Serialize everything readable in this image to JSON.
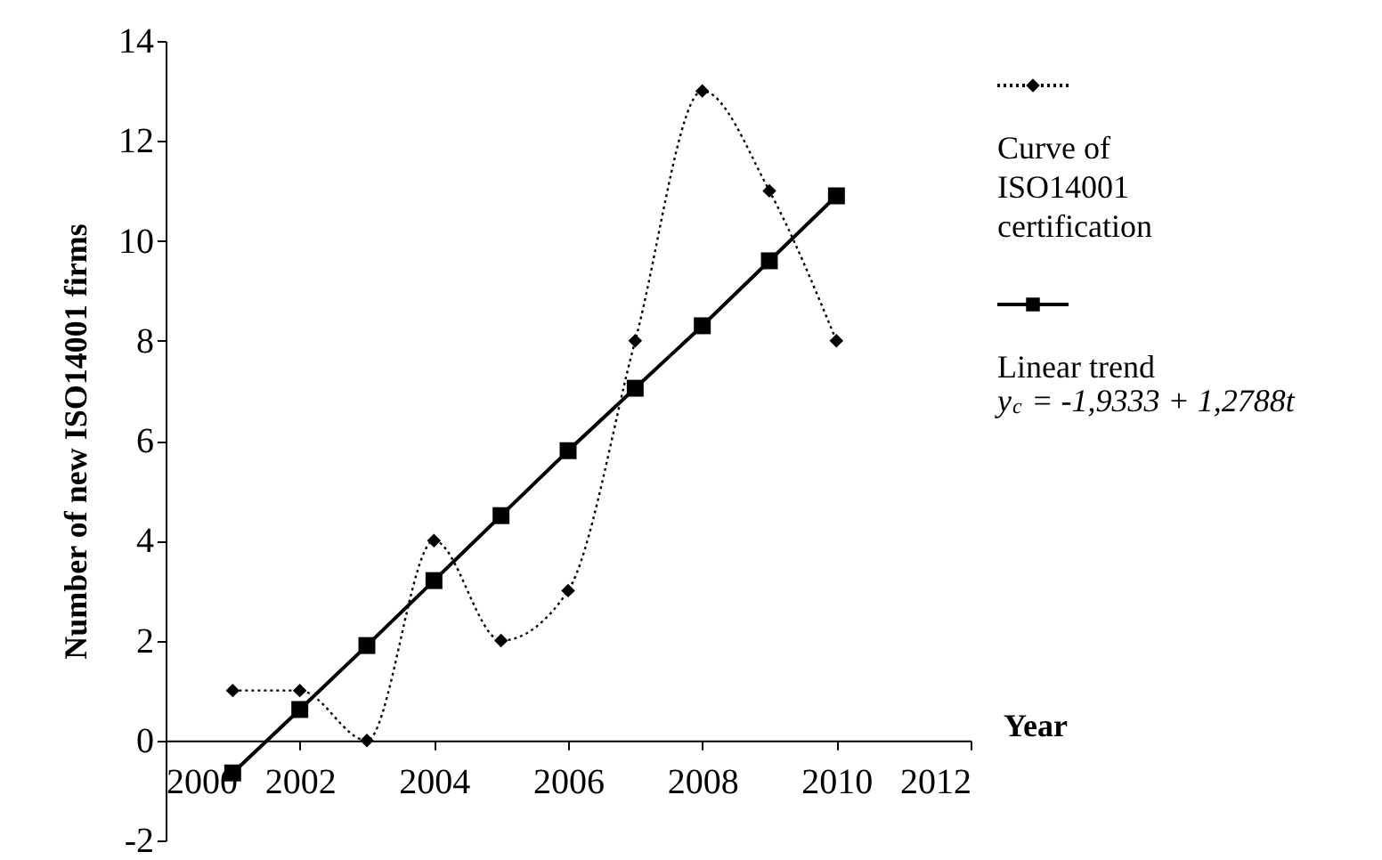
{
  "chart_data": {
    "type": "line",
    "xlabel": "Year",
    "ylabel": "Number of new ISO14001 firms",
    "x": [
      2001,
      2002,
      2003,
      2004,
      2005,
      2006,
      2007,
      2008,
      2009,
      2010
    ],
    "series": [
      {
        "name": "Curve of ISO14001 certification",
        "color": "#000000",
        "values": [
          1,
          1,
          0,
          4,
          2,
          3,
          8,
          13,
          11,
          8
        ],
        "line_style": "dotted",
        "marker": "diamond"
      },
      {
        "name": "Linear trend",
        "color": "#000000",
        "values": [
          -0.65,
          0.62,
          1.9,
          3.2,
          4.5,
          5.8,
          7.05,
          8.3,
          9.6,
          10.9
        ],
        "line_style": "solid",
        "marker": "square"
      }
    ],
    "xlim": [
      2000,
      2012
    ],
    "xticks": [
      2000,
      2002,
      2004,
      2006,
      2008,
      2010,
      2012
    ],
    "ylim": [
      -2,
      14
    ],
    "yticks": [
      -2,
      0,
      2,
      4,
      6,
      8,
      10,
      12,
      14
    ],
    "grid": false,
    "legend": "right",
    "annotations": [
      "y$_{c}$ = -1,9333 + 1,2788t"
    ]
  }
}
